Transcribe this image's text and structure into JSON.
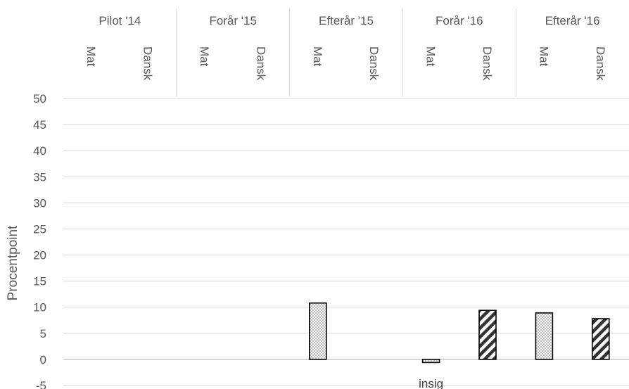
{
  "chart_data": {
    "type": "bar",
    "title": "",
    "ylabel": "Procentpoint",
    "xlabel": "",
    "ylim": [
      -5,
      50
    ],
    "yticks": [
      50,
      45,
      40,
      35,
      30,
      25,
      20,
      15,
      10,
      5,
      0,
      -5
    ],
    "grid": true,
    "groups": [
      {
        "label": "Pilot '14",
        "bars": [
          {
            "subject": "Mat",
            "value": null,
            "pattern": "dots"
          },
          {
            "subject": "Dansk",
            "value": null,
            "pattern": "hatch"
          }
        ]
      },
      {
        "label": "Forår '15",
        "bars": [
          {
            "subject": "Mat",
            "value": null,
            "pattern": "dots"
          },
          {
            "subject": "Dansk",
            "value": null,
            "pattern": "hatch"
          }
        ]
      },
      {
        "label": "Efterår '15",
        "bars": [
          {
            "subject": "Mat",
            "value": 10.8,
            "pattern": "dots"
          },
          {
            "subject": "Dansk",
            "value": null,
            "pattern": "hatch"
          }
        ]
      },
      {
        "label": "Forår '16",
        "bars": [
          {
            "subject": "Mat",
            "value": -0.6,
            "pattern": "dots",
            "annotation": "insig"
          },
          {
            "subject": "Dansk",
            "value": 9.4,
            "pattern": "hatch"
          }
        ]
      },
      {
        "label": "Efterår '16",
        "bars": [
          {
            "subject": "Mat",
            "value": 8.9,
            "pattern": "dots"
          },
          {
            "subject": "Dansk",
            "value": 7.8,
            "pattern": "hatch"
          }
        ]
      }
    ]
  }
}
